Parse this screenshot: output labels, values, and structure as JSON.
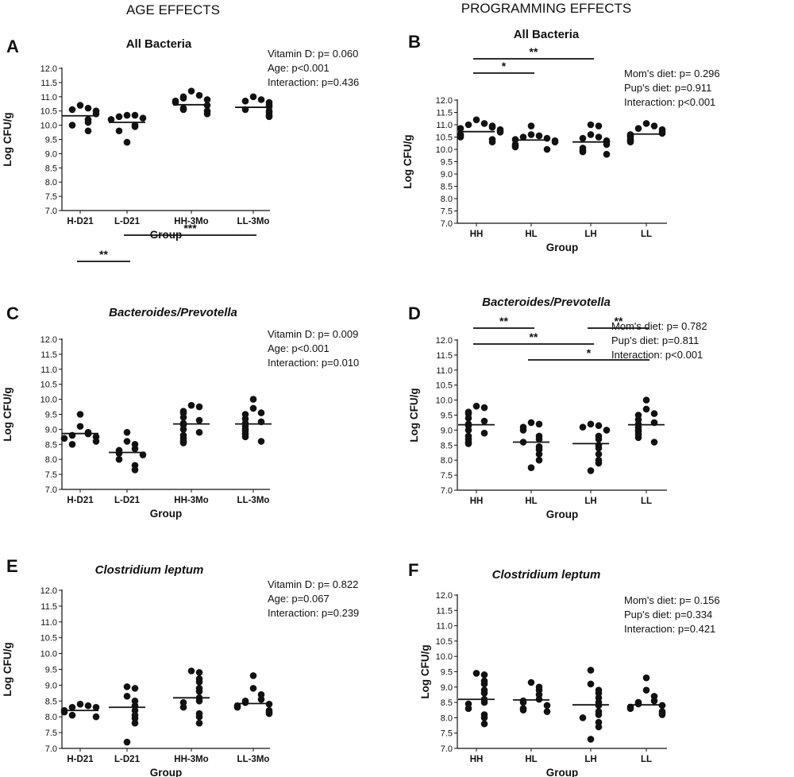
{
  "section_titles": {
    "left": "AGE EFFECTS",
    "right": "PROGRAMMING EFFECTS"
  },
  "chart_data": [
    {
      "panel": "A",
      "type": "scatter",
      "title": "All Bacteria",
      "title_italic": false,
      "xlabel": "Group",
      "ylabel": "Log CFU/g",
      "ylim": [
        7.0,
        12.0
      ],
      "categories": [
        "H-D21",
        "L-D21",
        "HH-3Mo",
        "LL-3Mo"
      ],
      "series": [
        {
          "values": [
            10.7,
            10.6,
            10.55,
            10.5,
            10.4,
            10.2,
            10.1,
            10.0,
            9.8
          ],
          "mean": 10.33
        },
        {
          "values": [
            10.35,
            10.35,
            10.3,
            10.25,
            10.2,
            10.0,
            9.95,
            9.8,
            9.4
          ],
          "mean": 10.1
        },
        {
          "values": [
            11.2,
            11.05,
            11.0,
            10.95,
            10.9,
            10.85,
            10.8,
            10.7,
            10.6,
            10.55,
            10.5,
            10.4
          ],
          "mean": 10.72
        },
        {
          "values": [
            11.0,
            10.9,
            10.85,
            10.8,
            10.7,
            10.65,
            10.55,
            10.5,
            10.45,
            10.35,
            10.3
          ],
          "mean": 10.63
        }
      ],
      "stats": [
        "Vitamin D: p= 0.060",
        "Age: p<0.001",
        "Interaction: p=0.436"
      ],
      "brackets": []
    },
    {
      "panel": "B",
      "type": "scatter",
      "title": "All Bacteria",
      "title_italic": false,
      "xlabel": "Group",
      "ylabel": "Log CFU/g",
      "ylim": [
        7.0,
        12.0
      ],
      "categories": [
        "HH",
        "HL",
        "LH",
        "LL"
      ],
      "series": [
        {
          "values": [
            11.2,
            11.05,
            11.0,
            10.95,
            10.9,
            10.85,
            10.8,
            10.75,
            10.7,
            10.6,
            10.55,
            10.5,
            10.4,
            10.3
          ],
          "mean": 10.72
        },
        {
          "values": [
            10.95,
            10.6,
            10.55,
            10.5,
            10.45,
            10.4,
            10.35,
            10.3,
            10.2,
            10.15,
            10.1,
            10.0
          ],
          "mean": 10.38
        },
        {
          "values": [
            11.0,
            10.95,
            10.6,
            10.5,
            10.45,
            10.35,
            10.3,
            10.2,
            10.05,
            9.95,
            9.9,
            9.8
          ],
          "mean": 10.3
        },
        {
          "values": [
            11.05,
            10.95,
            10.85,
            10.8,
            10.7,
            10.65,
            10.6,
            10.55,
            10.5,
            10.4,
            10.35,
            10.3
          ],
          "mean": 10.62
        }
      ],
      "stats": [
        "Mom's diet: p= 0.296",
        "Pup's diet: p=0.911",
        "Interaction: p<0.001"
      ],
      "brackets": [
        {
          "from": 0,
          "to": 2,
          "level": 0,
          "label": "**"
        },
        {
          "from": 0,
          "to": 1,
          "level": 1,
          "label": "*"
        }
      ]
    },
    {
      "panel": "C",
      "type": "scatter",
      "title": "Bacteroides/Prevotella",
      "title_italic": true,
      "xlabel": "Group",
      "ylabel": "Log CFU/g",
      "ylim": [
        7.0,
        12.0
      ],
      "categories": [
        "H-D21",
        "L-D21",
        "HH-3Mo",
        "LL-3Mo"
      ],
      "series": [
        {
          "values": [
            9.5,
            9.1,
            8.9,
            8.85,
            8.8,
            8.75,
            8.7,
            8.6,
            8.5
          ],
          "mean": 8.86
        },
        {
          "values": [
            8.9,
            8.6,
            8.5,
            8.35,
            8.3,
            8.2,
            8.15,
            8.0,
            7.8,
            7.65
          ],
          "mean": 8.23
        },
        {
          "values": [
            9.8,
            9.75,
            9.6,
            9.55,
            9.4,
            9.3,
            9.2,
            9.15,
            9.0,
            8.9,
            8.8,
            8.7,
            8.6,
            8.55
          ],
          "mean": 9.18
        },
        {
          "values": [
            10.0,
            9.7,
            9.55,
            9.5,
            9.35,
            9.25,
            9.2,
            9.1,
            9.0,
            8.95,
            8.85,
            8.75,
            8.6
          ],
          "mean": 9.18
        }
      ],
      "stats": [
        "Vitamin D: p= 0.009",
        "Age: p<0.001",
        "Interaction: p=0.010"
      ],
      "brackets": [
        {
          "from": 1,
          "to": 3,
          "level": 0,
          "label": "***"
        },
        {
          "from": 0,
          "to": 1,
          "level": 1,
          "label": "**"
        }
      ]
    },
    {
      "panel": "D",
      "type": "scatter",
      "title": "Bacteroides/Prevotella",
      "title_italic": true,
      "xlabel": "Group",
      "ylabel": "Log CFU/g",
      "ylim": [
        7.0,
        12.0
      ],
      "categories": [
        "HH",
        "HL",
        "LH",
        "LL"
      ],
      "series": [
        {
          "values": [
            9.8,
            9.75,
            9.6,
            9.55,
            9.4,
            9.3,
            9.2,
            9.15,
            9.0,
            8.9,
            8.8,
            8.7,
            8.6,
            8.55
          ],
          "mean": 9.18
        },
        {
          "values": [
            9.25,
            9.2,
            9.1,
            9.0,
            8.8,
            8.7,
            8.6,
            8.45,
            8.35,
            8.2,
            8.0,
            7.75
          ],
          "mean": 8.6
        },
        {
          "values": [
            9.2,
            9.15,
            9.1,
            9.0,
            8.8,
            8.7,
            8.5,
            8.4,
            8.2,
            8.0,
            7.9,
            7.65
          ],
          "mean": 8.55
        },
        {
          "values": [
            10.0,
            9.7,
            9.55,
            9.5,
            9.35,
            9.25,
            9.2,
            9.1,
            9.0,
            8.95,
            8.85,
            8.75,
            8.6
          ],
          "mean": 9.18
        }
      ],
      "stats": [
        "Mom's diet: p= 0.782",
        "Pup's diet: p=0.811",
        "Interaction: p<0.001"
      ],
      "brackets": [
        {
          "from": 0,
          "to": 1,
          "level": 0,
          "label": "**"
        },
        {
          "from": 2,
          "to": 3,
          "level": 0,
          "label": "**"
        },
        {
          "from": 0,
          "to": 2,
          "level": 1,
          "label": "**"
        },
        {
          "from": 1,
          "to": 3,
          "level": 2,
          "label": "*"
        }
      ]
    },
    {
      "panel": "E",
      "type": "scatter",
      "title": "Clostridium leptum",
      "title_italic": true,
      "xlabel": "Group",
      "ylabel": "Log CFU/g",
      "ylim": [
        7.0,
        12.0
      ],
      "categories": [
        "H-D21",
        "L-D21",
        "HH-3Mo",
        "LL-3Mo"
      ],
      "series": [
        {
          "values": [
            8.4,
            8.35,
            8.3,
            8.3,
            8.2,
            8.15,
            8.05,
            8.0
          ],
          "mean": 8.2
        },
        {
          "values": [
            8.95,
            8.9,
            8.65,
            8.5,
            8.35,
            8.2,
            8.05,
            7.95,
            7.8,
            7.2
          ],
          "mean": 8.3
        },
        {
          "values": [
            9.45,
            9.4,
            9.2,
            9.1,
            8.9,
            8.8,
            8.6,
            8.5,
            8.45,
            8.3,
            8.1,
            8.0,
            7.8
          ],
          "mean": 8.6
        },
        {
          "values": [
            9.3,
            8.9,
            8.7,
            8.55,
            8.5,
            8.45,
            8.4,
            8.35,
            8.3,
            8.2,
            8.15,
            8.1
          ],
          "mean": 8.42
        }
      ],
      "stats": [
        "Vitamin D: p= 0.822",
        "Age: p=0.067",
        "Interaction: p=0.239"
      ],
      "brackets": []
    },
    {
      "panel": "F",
      "type": "scatter",
      "title": "Clostridium leptum",
      "title_italic": true,
      "xlabel": "Group",
      "ylabel": "Log CFU/g",
      "ylim": [
        7.0,
        12.0
      ],
      "categories": [
        "HH",
        "HL",
        "LH",
        "LL"
      ],
      "series": [
        {
          "values": [
            9.45,
            9.4,
            9.2,
            9.1,
            8.9,
            8.8,
            8.6,
            8.5,
            8.45,
            8.3,
            8.1,
            8.0,
            7.8
          ],
          "mean": 8.6
        },
        {
          "values": [
            9.15,
            9.0,
            8.9,
            8.75,
            8.6,
            8.55,
            8.5,
            8.4,
            8.3,
            8.25,
            8.2
          ],
          "mean": 8.58
        },
        {
          "values": [
            9.55,
            9.1,
            8.9,
            8.8,
            8.65,
            8.5,
            8.4,
            8.2,
            8.1,
            8.0,
            7.85,
            7.7,
            7.3
          ],
          "mean": 8.42
        },
        {
          "values": [
            9.3,
            8.9,
            8.7,
            8.55,
            8.5,
            8.45,
            8.4,
            8.35,
            8.3,
            8.2,
            8.15,
            8.1
          ],
          "mean": 8.42
        }
      ],
      "stats": [
        "Mom's diet: p= 0.156",
        "Pup's diet: p=0.334",
        "Interaction: p=0.421"
      ],
      "brackets": []
    }
  ]
}
